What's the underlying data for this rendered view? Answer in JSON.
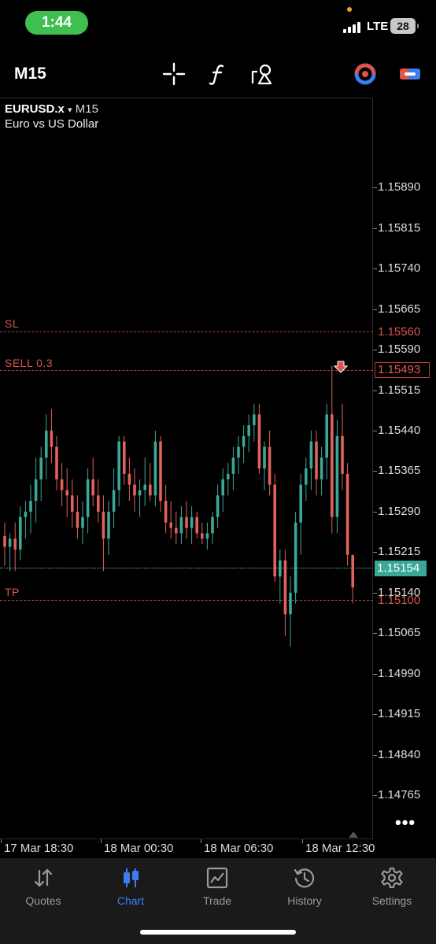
{
  "status": {
    "time": "1:44",
    "network": "LTE",
    "battery": "28"
  },
  "toolbar": {
    "timeframe": "M15",
    "icons": [
      "crosshair-icon",
      "function-icon",
      "objects-icon",
      "indicator-icon",
      "trade-icon"
    ]
  },
  "chart": {
    "symbol": "EURUSD.x",
    "dropdown_glyph": "▾",
    "timeframe": "M15",
    "description": "Euro vs US Dollar",
    "price_labels": [
      "1.15890",
      "1.15815",
      "1.15740",
      "1.15665",
      "1.15590",
      "1.15515",
      "1.15440",
      "1.15365",
      "1.15290",
      "1.15215",
      "1.15140",
      "1.15065",
      "1.14990",
      "1.14915",
      "1.14840",
      "1.14765"
    ],
    "sl_label": "SL",
    "sl_price": "1.15560",
    "sell_label": "SELL 0.3",
    "sell_price": "1.15493",
    "tp_label": "TP",
    "tp_price": "1.15100",
    "current_price": "1.15154",
    "more": "•••",
    "time_labels": [
      "17 Mar 18:30",
      "18 Mar 00:30",
      "18 Mar 06:30",
      "18 Mar 12:30"
    ],
    "colors": {
      "bull": "#3aa897",
      "bear": "#e0625a",
      "level": "#d8574f",
      "current": "#3aa897"
    }
  },
  "chart_data": {
    "type": "candlestick",
    "symbol": "EURUSD.x",
    "timeframe": "M15",
    "ylim": [
      1.1472,
      1.1602
    ],
    "y_ticks": [
      1.1589,
      1.15815,
      1.1574,
      1.15665,
      1.1559,
      1.15515,
      1.1544,
      1.15365,
      1.1529,
      1.15215,
      1.1514,
      1.15065,
      1.1499,
      1.14915,
      1.1484,
      1.14765
    ],
    "x_labels": [
      "17 Mar 18:30",
      "18 Mar 00:30",
      "18 Mar 06:30",
      "18 Mar 12:30"
    ],
    "levels": {
      "sl": 1.1556,
      "sell": 1.15493,
      "tp": 1.151,
      "current": 1.15154
    },
    "ohlc": [
      [
        1.15245,
        1.1527,
        1.1519,
        1.15225
      ],
      [
        1.15225,
        1.1525,
        1.1518,
        1.1524
      ],
      [
        1.1524,
        1.1527,
        1.1518,
        1.1522
      ],
      [
        1.1522,
        1.153,
        1.152,
        1.1528
      ],
      [
        1.1528,
        1.1531,
        1.1524,
        1.1529
      ],
      [
        1.1529,
        1.1534,
        1.1525,
        1.1531
      ],
      [
        1.1531,
        1.1539,
        1.1527,
        1.1535
      ],
      [
        1.1535,
        1.1541,
        1.1531,
        1.1539
      ],
      [
        1.1539,
        1.1547,
        1.1535,
        1.1544
      ],
      [
        1.1544,
        1.1548,
        1.1538,
        1.1541
      ],
      [
        1.1541,
        1.1543,
        1.1533,
        1.1535
      ],
      [
        1.1535,
        1.1538,
        1.153,
        1.1533
      ],
      [
        1.1533,
        1.1537,
        1.1528,
        1.1532
      ],
      [
        1.1532,
        1.1535,
        1.1526,
        1.1529
      ],
      [
        1.1529,
        1.1532,
        1.1524,
        1.1526
      ],
      [
        1.1526,
        1.1531,
        1.1523,
        1.1528
      ],
      [
        1.1528,
        1.1537,
        1.1525,
        1.1535
      ],
      [
        1.1535,
        1.1539,
        1.153,
        1.1532
      ],
      [
        1.1532,
        1.1535,
        1.1527,
        1.1529
      ],
      [
        1.1529,
        1.1532,
        1.1518,
        1.1524
      ],
      [
        1.1524,
        1.1531,
        1.1521,
        1.1529
      ],
      [
        1.1529,
        1.1537,
        1.1526,
        1.1533
      ],
      [
        1.1533,
        1.1543,
        1.153,
        1.1542
      ],
      [
        1.1542,
        1.1543,
        1.1534,
        1.1536
      ],
      [
        1.1536,
        1.1539,
        1.1531,
        1.1534
      ],
      [
        1.1534,
        1.1537,
        1.1529,
        1.1532
      ],
      [
        1.1532,
        1.1535,
        1.1528,
        1.1533
      ],
      [
        1.1533,
        1.1539,
        1.153,
        1.1534
      ],
      [
        1.1534,
        1.1538,
        1.1531,
        1.1532
      ],
      [
        1.1532,
        1.1544,
        1.153,
        1.1542
      ],
      [
        1.1542,
        1.1543,
        1.1529,
        1.1531
      ],
      [
        1.1531,
        1.1534,
        1.1525,
        1.1527
      ],
      [
        1.1527,
        1.1531,
        1.1524,
        1.1526
      ],
      [
        1.1526,
        1.1529,
        1.1523,
        1.1525
      ],
      [
        1.1525,
        1.153,
        1.1523,
        1.1528
      ],
      [
        1.1528,
        1.1531,
        1.1524,
        1.1526
      ],
      [
        1.1526,
        1.153,
        1.1523,
        1.1528
      ],
      [
        1.1528,
        1.1529,
        1.1524,
        1.1525
      ],
      [
        1.1525,
        1.1527,
        1.1523,
        1.1524
      ],
      [
        1.1524,
        1.1527,
        1.1522,
        1.1525
      ],
      [
        1.1525,
        1.1529,
        1.1523,
        1.1528
      ],
      [
        1.1528,
        1.1534,
        1.1526,
        1.1532
      ],
      [
        1.1532,
        1.1537,
        1.1529,
        1.1535
      ],
      [
        1.1535,
        1.1538,
        1.1532,
        1.1536
      ],
      [
        1.1536,
        1.1541,
        1.1533,
        1.1539
      ],
      [
        1.1539,
        1.1543,
        1.1536,
        1.1541
      ],
      [
        1.1541,
        1.1545,
        1.1538,
        1.1543
      ],
      [
        1.1543,
        1.1547,
        1.154,
        1.1545
      ],
      [
        1.1545,
        1.1549,
        1.1542,
        1.1547
      ],
      [
        1.1547,
        1.1549,
        1.1536,
        1.1537
      ],
      [
        1.1537,
        1.1542,
        1.1533,
        1.1541
      ],
      [
        1.1541,
        1.1544,
        1.1532,
        1.1534
      ],
      [
        1.1534,
        1.1536,
        1.1516,
        1.1517
      ],
      [
        1.1517,
        1.1522,
        1.1512,
        1.152
      ],
      [
        1.152,
        1.1522,
        1.1506,
        1.151
      ],
      [
        1.151,
        1.1517,
        1.1504,
        1.1514
      ],
      [
        1.1514,
        1.1529,
        1.1512,
        1.1527
      ],
      [
        1.1527,
        1.1536,
        1.1521,
        1.1534
      ],
      [
        1.1534,
        1.1539,
        1.1531,
        1.1537
      ],
      [
        1.1537,
        1.1544,
        1.1533,
        1.1542
      ],
      [
        1.1542,
        1.1544,
        1.1532,
        1.1535
      ],
      [
        1.1535,
        1.1541,
        1.1532,
        1.1539
      ],
      [
        1.1539,
        1.1549,
        1.1535,
        1.1547
      ],
      [
        1.1547,
        1.1556,
        1.1525,
        1.1528
      ],
      [
        1.1528,
        1.1546,
        1.1525,
        1.1543
      ],
      [
        1.1543,
        1.1549,
        1.1533,
        1.1536
      ],
      [
        1.1536,
        1.1538,
        1.1519,
        1.1521
      ],
      [
        1.1521,
        1.1521,
        1.1512,
        1.1515
      ]
    ]
  },
  "nav": {
    "items": [
      {
        "label": "Quotes"
      },
      {
        "label": "Chart"
      },
      {
        "label": "Trade"
      },
      {
        "label": "History"
      },
      {
        "label": "Settings"
      }
    ]
  }
}
